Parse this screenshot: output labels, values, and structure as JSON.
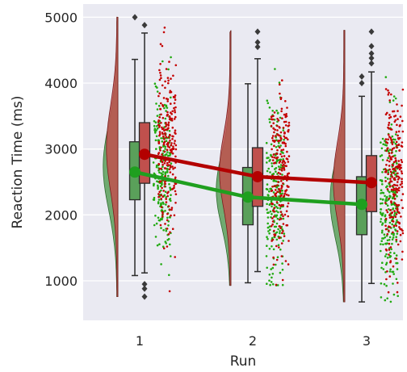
{
  "chart_data": {
    "type": "raincloud",
    "xlabel": "Run",
    "ylabel": "Reaction Time (ms)",
    "ylim": [
      400,
      5200
    ],
    "yticks": [
      1000,
      2000,
      3000,
      4000,
      5000
    ],
    "categories": [
      "1",
      "2",
      "3"
    ],
    "grid": true,
    "legend": "none",
    "colors": {
      "background": "#eaeaf2",
      "grid": "#ffffff",
      "green": "#1f9f1f",
      "red": "#b30000",
      "green_fill": "#5aa05a",
      "red_fill": "#c0504d"
    },
    "series": [
      {
        "color": "green",
        "boxes": [
          {
            "whisker_low": 1080,
            "q1": 2230,
            "median": 2680,
            "q3": 3110,
            "whisker_high": 4360,
            "outliers": [
              5000
            ]
          },
          {
            "whisker_low": 970,
            "q1": 1850,
            "median": 2280,
            "q3": 2720,
            "whisker_high": 3990,
            "outliers": []
          },
          {
            "whisker_low": 680,
            "q1": 1700,
            "median": 2150,
            "q3": 2580,
            "whisker_high": 3800,
            "outliers": [
              4000,
              4100
            ]
          }
        ],
        "means": [
          2650,
          2270,
          2160
        ]
      },
      {
        "color": "red",
        "boxes": [
          {
            "whisker_low": 1120,
            "q1": 2480,
            "median": 2900,
            "q3": 3400,
            "whisker_high": 4760,
            "outliers": [
              4880,
              950,
              880,
              760
            ]
          },
          {
            "whisker_low": 1140,
            "q1": 2130,
            "median": 2570,
            "q3": 3020,
            "whisker_high": 4370,
            "outliers": [
              4550,
              4620,
              4780
            ]
          },
          {
            "whisker_low": 960,
            "q1": 2050,
            "median": 2490,
            "q3": 2900,
            "whisker_high": 4170,
            "outliers": [
              4300,
              4380,
              4450,
              4560,
              4780
            ]
          }
        ],
        "means": [
          2920,
          2580,
          2490
        ]
      }
    ],
    "distributions": [
      {
        "center": 2850,
        "spread": 650,
        "top": 5000,
        "bottom": 760
      },
      {
        "center": 2500,
        "spread": 560,
        "top": 4800,
        "bottom": 930
      },
      {
        "center": 2350,
        "spread": 600,
        "top": 4800,
        "bottom": 680
      }
    ]
  }
}
